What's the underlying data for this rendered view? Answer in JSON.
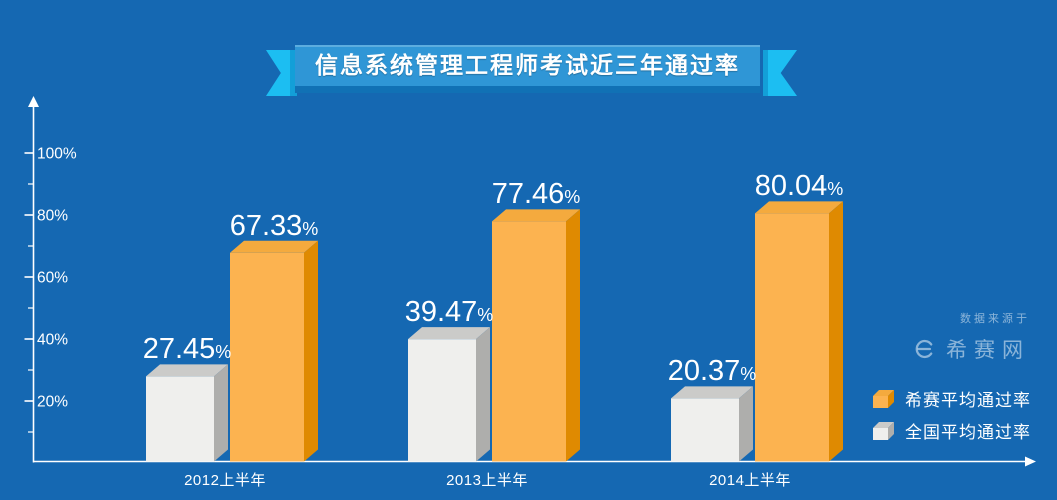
{
  "title": "信息系统管理工程师考试近三年通过率",
  "watermark": {
    "source_label": "数据来源于",
    "brand": "希赛网"
  },
  "legend": {
    "items": [
      {
        "label": "希赛平均通过率",
        "series": "xisai"
      },
      {
        "label": "全国平均通过率",
        "series": "national"
      }
    ]
  },
  "chart_data": {
    "type": "bar",
    "style": "3d-cuboid-bars",
    "title": "信息系统管理工程师考试近三年通过率",
    "categories": [
      "2012上半年",
      "2013上半年",
      "2014上半年"
    ],
    "series": [
      {
        "name": "全国平均通过率",
        "key": "national",
        "values": [
          27.45,
          39.47,
          20.37
        ],
        "display_values": [
          "27.45%",
          "39.47%",
          "20.37%"
        ]
      },
      {
        "name": "希赛平均通过率",
        "key": "xisai",
        "values": [
          67.33,
          77.46,
          80.04
        ],
        "display_values": [
          "67.33%",
          "77.46%",
          "80.04%"
        ]
      }
    ],
    "y_axis": {
      "tick_labels": [
        "100%",
        "80%",
        "60%",
        "40%",
        "20%"
      ],
      "tick_values": [
        100,
        80,
        60,
        40,
        20
      ],
      "minor_tick_values": [
        90,
        70,
        50,
        30,
        10
      ],
      "range": [
        0,
        115
      ]
    },
    "value_label_format": "{value}%",
    "grid": false,
    "legend_position": "bottom-right"
  },
  "colors": {
    "background": "#1568B2",
    "banner_fill": "#2F96D6",
    "banner_shadow": "#1171B5",
    "ribbon_tail": "#1CBEF2",
    "ribbon_fold": "#139FD8",
    "xisai_front": "#FCB350",
    "xisai_top": "#F4AA3E",
    "xisai_side": "#DF8A01",
    "national_front": "#EFEFED",
    "national_top": "#CBCBC9",
    "national_side": "#AEAEAC",
    "axis": "#FFFFFF",
    "text": "#FFFFFF",
    "watermark": "rgba(255,255,255,0.5)"
  }
}
